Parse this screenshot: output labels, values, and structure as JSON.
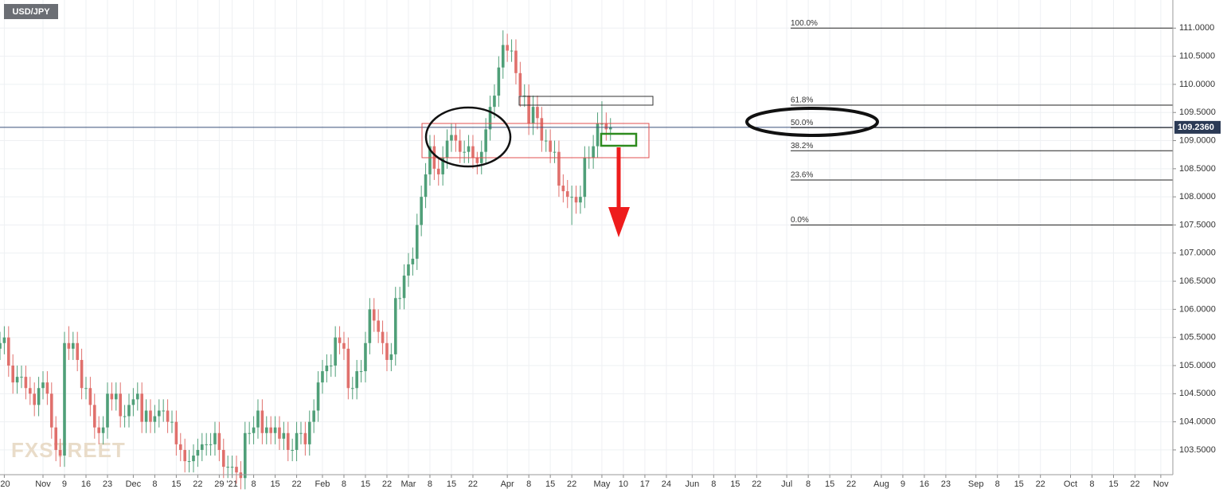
{
  "chart_data": {
    "type": "candlestick",
    "title": "USD/JPY",
    "watermark": "FXSTREET",
    "x": [
      0,
      1,
      2,
      3,
      4,
      5,
      6,
      7,
      8,
      9,
      10,
      11,
      12,
      13,
      14,
      15,
      16,
      17,
      18,
      19,
      20,
      21,
      22,
      23,
      24,
      25,
      26,
      27,
      28,
      29,
      30,
      31,
      32,
      33,
      34,
      35,
      36,
      37,
      38,
      39,
      40,
      41,
      42,
      43,
      44,
      45,
      46,
      47,
      48,
      49,
      50,
      51,
      52,
      53,
      54,
      55,
      56,
      57,
      58,
      59,
      60,
      61,
      62,
      63,
      64,
      65,
      66,
      67,
      68,
      69,
      70,
      71,
      72,
      73,
      74,
      75,
      76,
      77,
      78,
      79,
      80,
      81,
      82,
      83,
      84,
      85,
      86,
      87,
      88,
      89,
      90,
      91,
      92,
      93,
      94,
      95,
      96,
      97,
      98,
      99,
      100,
      101,
      102,
      103,
      104,
      105,
      106,
      107,
      108,
      109,
      110,
      111,
      112,
      113,
      114,
      115,
      116,
      117,
      118,
      119,
      120,
      121,
      122,
      123,
      124,
      125,
      126,
      127,
      128,
      129,
      130,
      131,
      132,
      133,
      134,
      135,
      136,
      137,
      138,
      139,
      140,
      141,
      142
    ],
    "open": [
      105.3,
      105.4,
      105.5,
      105.0,
      104.7,
      104.8,
      104.8,
      104.6,
      104.5,
      104.3,
      104.6,
      104.7,
      104.5,
      103.9,
      103.5,
      103.4,
      105.4,
      105.3,
      105.4,
      105.1,
      104.6,
      104.6,
      104.3,
      103.9,
      103.8,
      103.9,
      104.5,
      104.4,
      104.5,
      104.1,
      104.1,
      104.3,
      104.4,
      104.5,
      104.0,
      104.2,
      104.0,
      104.1,
      104.2,
      104.2,
      104.0,
      104.0,
      103.6,
      103.5,
      103.3,
      103.3,
      103.4,
      103.5,
      103.6,
      103.6,
      103.6,
      103.8,
      103.5,
      103.2,
      103.2,
      103.2,
      103.1,
      103.0,
      103.8,
      103.8,
      103.9,
      104.2,
      103.8,
      103.9,
      103.8,
      103.9,
      103.7,
      103.8,
      103.5,
      103.5,
      103.8,
      103.8,
      103.6,
      104.0,
      104.2,
      104.7,
      104.9,
      105.0,
      105.0,
      105.5,
      105.4,
      105.3,
      104.6,
      104.6,
      104.9,
      104.9,
      105.4,
      106.0,
      105.8,
      105.6,
      105.4,
      105.1,
      105.2,
      106.2,
      106.2,
      106.6,
      106.8,
      106.9,
      107.5,
      108.0,
      108.4,
      108.9,
      108.5,
      108.4,
      108.7,
      109.0,
      109.1,
      109.0,
      108.8,
      108.8,
      108.9,
      108.7,
      108.6,
      108.8,
      109.2,
      109.6,
      109.8,
      110.3,
      110.7,
      110.6,
      110.6,
      110.2,
      109.8,
      109.8,
      109.3,
      109.6,
      109.4,
      109.0,
      109.0,
      108.8,
      108.8,
      108.2,
      108.1,
      108.0,
      108.0,
      107.9,
      108.0,
      108.7,
      108.7,
      108.9,
      109.3,
      109.3,
      109.2
    ],
    "high": [
      105.6,
      105.7,
      105.7,
      105.2,
      105.0,
      105.0,
      105.0,
      104.8,
      104.7,
      104.8,
      104.9,
      104.9,
      104.7,
      104.1,
      103.7,
      105.6,
      105.7,
      105.6,
      105.6,
      105.3,
      104.8,
      104.8,
      104.5,
      104.1,
      104.1,
      104.7,
      104.7,
      104.7,
      104.7,
      104.3,
      104.5,
      104.6,
      104.7,
      104.7,
      104.4,
      104.4,
      104.3,
      104.4,
      104.4,
      104.4,
      104.2,
      104.2,
      103.8,
      103.7,
      103.5,
      103.6,
      103.7,
      103.8,
      103.8,
      103.8,
      104.0,
      104.0,
      103.7,
      103.4,
      103.4,
      103.4,
      103.3,
      104.0,
      104.0,
      104.1,
      104.4,
      104.4,
      104.1,
      104.1,
      104.1,
      104.1,
      104.0,
      104.0,
      103.7,
      104.0,
      104.0,
      104.0,
      104.2,
      104.4,
      104.9,
      105.1,
      105.2,
      105.2,
      105.7,
      105.7,
      105.6,
      105.5,
      104.8,
      105.1,
      105.1,
      105.6,
      106.2,
      106.2,
      106.0,
      105.8,
      105.6,
      105.4,
      106.4,
      106.4,
      106.8,
      107.0,
      107.1,
      107.7,
      108.2,
      108.6,
      109.1,
      109.1,
      108.7,
      108.9,
      109.2,
      109.3,
      109.3,
      109.2,
      109.0,
      109.1,
      109.1,
      108.8,
      109.0,
      109.4,
      109.8,
      110.0,
      110.5,
      110.96,
      110.9,
      110.8,
      110.8,
      110.4,
      110.0,
      110.0,
      109.8,
      109.8,
      109.6,
      109.2,
      109.2,
      109.0,
      109.0,
      108.4,
      108.3,
      108.2,
      108.2,
      108.2,
      108.9,
      108.9,
      109.1,
      109.5,
      109.7,
      109.5,
      109.4
    ],
    "low": [
      105.1,
      105.2,
      104.8,
      104.5,
      104.5,
      104.6,
      104.4,
      104.3,
      104.1,
      104.1,
      104.4,
      104.3,
      103.7,
      103.3,
      103.2,
      103.2,
      105.1,
      105.1,
      104.9,
      104.4,
      104.4,
      104.1,
      103.7,
      103.6,
      103.6,
      103.7,
      104.2,
      104.2,
      103.9,
      103.9,
      103.9,
      104.1,
      104.2,
      103.8,
      103.8,
      103.8,
      103.8,
      103.9,
      104.0,
      103.8,
      103.8,
      103.4,
      103.3,
      103.1,
      103.1,
      103.1,
      103.2,
      103.3,
      103.4,
      103.4,
      103.4,
      103.3,
      103.0,
      103.0,
      103.0,
      102.9,
      102.8,
      102.8,
      103.6,
      103.6,
      103.7,
      103.6,
      103.6,
      103.6,
      103.6,
      103.5,
      103.5,
      103.3,
      103.3,
      103.3,
      103.6,
      103.4,
      103.4,
      103.8,
      104.0,
      104.5,
      104.7,
      104.8,
      104.8,
      105.2,
      105.1,
      104.4,
      104.4,
      104.4,
      104.7,
      104.7,
      105.2,
      105.6,
      105.4,
      105.2,
      104.9,
      104.9,
      105.0,
      106.0,
      106.0,
      106.4,
      106.6,
      106.7,
      107.3,
      107.8,
      108.2,
      108.3,
      108.2,
      108.2,
      108.5,
      108.8,
      108.8,
      108.6,
      108.6,
      108.6,
      108.5,
      108.4,
      108.4,
      108.6,
      109.0,
      109.4,
      109.6,
      110.1,
      110.4,
      110.4,
      110.0,
      109.6,
      109.6,
      109.1,
      109.1,
      109.2,
      108.8,
      108.8,
      108.6,
      108.6,
      108.0,
      107.9,
      107.8,
      107.5,
      107.7,
      107.7,
      107.8,
      108.5,
      108.5,
      108.7,
      109.1,
      109.0,
      109.0
    ],
    "close": [
      105.4,
      105.5,
      105.0,
      104.7,
      104.8,
      104.8,
      104.6,
      104.5,
      104.3,
      104.6,
      104.7,
      104.5,
      103.9,
      103.5,
      103.4,
      105.4,
      105.3,
      105.4,
      105.1,
      104.6,
      104.6,
      104.3,
      103.9,
      103.8,
      103.9,
      104.5,
      104.4,
      104.5,
      104.1,
      104.1,
      104.3,
      104.4,
      104.5,
      104.0,
      104.2,
      104.0,
      104.1,
      104.2,
      104.2,
      104.0,
      104.0,
      103.6,
      103.5,
      103.3,
      103.3,
      103.4,
      103.5,
      103.6,
      103.6,
      103.6,
      103.8,
      103.5,
      103.2,
      103.2,
      103.2,
      103.1,
      103.0,
      103.8,
      103.8,
      103.9,
      104.2,
      103.8,
      103.9,
      103.8,
      103.9,
      103.7,
      103.8,
      103.5,
      103.5,
      103.8,
      103.8,
      103.6,
      104.0,
      104.2,
      104.7,
      104.9,
      105.0,
      105.0,
      105.5,
      105.4,
      105.3,
      104.6,
      104.6,
      104.9,
      104.9,
      105.4,
      106.0,
      105.8,
      105.6,
      105.4,
      105.1,
      105.2,
      106.2,
      106.2,
      106.6,
      106.8,
      106.9,
      107.5,
      108.0,
      108.4,
      108.9,
      108.5,
      108.4,
      108.7,
      109.0,
      109.1,
      109.0,
      108.8,
      108.8,
      108.9,
      108.7,
      108.6,
      108.8,
      109.2,
      109.6,
      109.8,
      110.3,
      110.7,
      110.6,
      110.6,
      110.2,
      109.8,
      109.8,
      109.3,
      109.6,
      109.4,
      109.0,
      109.0,
      108.8,
      108.8,
      108.2,
      108.1,
      108.0,
      108.0,
      107.9,
      108.0,
      108.7,
      108.7,
      108.9,
      109.3,
      109.3,
      109.2,
      109.24
    ],
    "up_color": "#4f9f78",
    "down_color": "#e0706c",
    "xlim": [
      0,
      272.8
    ],
    "ylim": [
      103.06,
      111.5
    ],
    "xticks": [
      {
        "value": 1,
        "label": "'20"
      },
      {
        "value": 10,
        "label": "Nov"
      },
      {
        "value": 15,
        "label": "9"
      },
      {
        "value": 20,
        "label": "16"
      },
      {
        "value": 25,
        "label": "23"
      },
      {
        "value": 31,
        "label": "Dec"
      },
      {
        "value": 36,
        "label": "8"
      },
      {
        "value": 41,
        "label": "15"
      },
      {
        "value": 46,
        "label": "22"
      },
      {
        "value": 51,
        "label": "29"
      },
      {
        "value": 54,
        "label": "'21"
      },
      {
        "value": 59,
        "label": "8"
      },
      {
        "value": 64,
        "label": "15"
      },
      {
        "value": 69,
        "label": "22"
      },
      {
        "value": 75,
        "label": "Feb"
      },
      {
        "value": 80,
        "label": "8"
      },
      {
        "value": 85,
        "label": "15"
      },
      {
        "value": 90,
        "label": "22"
      },
      {
        "value": 95,
        "label": "Mar"
      },
      {
        "value": 100,
        "label": "8"
      },
      {
        "value": 105,
        "label": "15"
      },
      {
        "value": 110,
        "label": "22"
      },
      {
        "value": 118,
        "label": "Apr"
      },
      {
        "value": 123,
        "label": "8"
      },
      {
        "value": 128,
        "label": "15"
      },
      {
        "value": 133,
        "label": "22"
      },
      {
        "value": 140,
        "label": "May"
      },
      {
        "value": 145,
        "label": "10"
      },
      {
        "value": 150,
        "label": "17"
      },
      {
        "value": 155,
        "label": "24"
      },
      {
        "value": 161,
        "label": "Jun"
      },
      {
        "value": 166,
        "label": "8"
      },
      {
        "value": 171,
        "label": "15"
      },
      {
        "value": 176,
        "label": "22"
      },
      {
        "value": 183,
        "label": "Jul"
      },
      {
        "value": 188,
        "label": "8"
      },
      {
        "value": 193,
        "label": "15"
      },
      {
        "value": 198,
        "label": "22"
      },
      {
        "value": 205,
        "label": "Aug"
      },
      {
        "value": 210,
        "label": "9"
      },
      {
        "value": 215,
        "label": "16"
      },
      {
        "value": 220,
        "label": "23"
      },
      {
        "value": 227,
        "label": "Sep"
      },
      {
        "value": 232,
        "label": "8"
      },
      {
        "value": 237,
        "label": "15"
      },
      {
        "value": 242,
        "label": "22"
      },
      {
        "value": 249,
        "label": "Oct"
      },
      {
        "value": 254,
        "label": "8"
      },
      {
        "value": 259,
        "label": "15"
      },
      {
        "value": 264,
        "label": "22"
      },
      {
        "value": 270,
        "label": "Nov"
      }
    ],
    "yticks": [
      {
        "value": 103.5,
        "label": "103.5000"
      },
      {
        "value": 104.0,
        "label": "104.0000"
      },
      {
        "value": 104.5,
        "label": "104.5000"
      },
      {
        "value": 105.0,
        "label": "105.0000"
      },
      {
        "value": 105.5,
        "label": "105.5000"
      },
      {
        "value": 106.0,
        "label": "106.0000"
      },
      {
        "value": 106.5,
        "label": "106.5000"
      },
      {
        "value": 107.0,
        "label": "107.0000"
      },
      {
        "value": 107.5,
        "label": "107.5000"
      },
      {
        "value": 108.0,
        "label": "108.0000"
      },
      {
        "value": 108.5,
        "label": "108.5000"
      },
      {
        "value": 109.0,
        "label": "109.0000"
      },
      {
        "value": 109.5,
        "label": "109.5000"
      },
      {
        "value": 110.0,
        "label": "110.0000"
      },
      {
        "value": 110.5,
        "label": "110.5000"
      },
      {
        "value": 111.0,
        "label": "111.0000"
      }
    ],
    "last_price": {
      "value": 109.236,
      "label": "109.2360"
    },
    "fib_levels": [
      {
        "label": "100.0%",
        "value": 111.0
      },
      {
        "label": "61.8%",
        "value": 109.63
      },
      {
        "label": "50.0%",
        "value": 109.23
      },
      {
        "label": "38.2%",
        "value": 108.82
      },
      {
        "label": "23.6%",
        "value": 108.3
      },
      {
        "label": "0.0%",
        "value": 107.5
      }
    ],
    "grid": true
  }
}
